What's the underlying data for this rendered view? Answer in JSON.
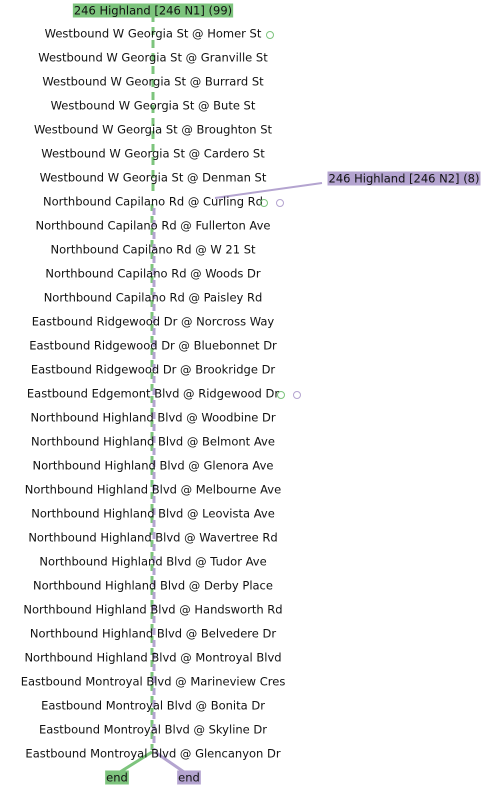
{
  "routes": [
    {
      "label": "246 Highland [246 N1] (99)"
    },
    {
      "label": "246 Highland [246 N2] (8)"
    }
  ],
  "stops": [
    "Westbound W Georgia St @ Homer St",
    "Westbound W Georgia St @ Granville St",
    "Westbound W Georgia St @ Burrard St",
    "Westbound W Georgia St @ Bute St",
    "Westbound W Georgia St @ Broughton St",
    "Westbound W Georgia St @ Cardero St",
    "Westbound W Georgia St @ Denman St",
    "Northbound Capilano Rd @ Curling Rd",
    "Northbound Capilano Rd @ Fullerton Ave",
    "Northbound Capilano Rd @ W 21 St",
    "Northbound Capilano Rd @ Woods Dr",
    "Northbound Capilano Rd @ Paisley Rd",
    "Eastbound Ridgewood Dr @ Norcross Way",
    "Eastbound Ridgewood Dr @ Bluebonnet Dr",
    "Eastbound Ridgewood Dr @ Brookridge Dr",
    "Eastbound Edgemont Blvd @ Ridgewood Dr",
    "Northbound Highland Blvd @ Woodbine Dr",
    "Northbound Highland Blvd @ Belmont Ave",
    "Northbound Highland Blvd @ Glenora Ave",
    "Northbound Highland Blvd @ Melbourne Ave",
    "Northbound Highland Blvd @ Leovista Ave",
    "Northbound Highland Blvd @ Wavertree Rd",
    "Northbound Highland Blvd @ Tudor Ave",
    "Northbound Highland Blvd @ Derby Place",
    "Northbound Highland Blvd @ Handsworth Rd",
    "Northbound Highland Blvd @ Belvedere Dr",
    "Northbound Highland Blvd @ Montroyal Blvd",
    "Eastbound Montroyal Blvd @ Marineview Cres",
    "Eastbound Montroyal Blvd @ Bonita Dr",
    "Eastbound Montroyal Blvd @ Skyline Dr",
    "Eastbound Montroyal Blvd @ Glencanyon Dr"
  ],
  "end_labels": [
    "end",
    "end"
  ]
}
